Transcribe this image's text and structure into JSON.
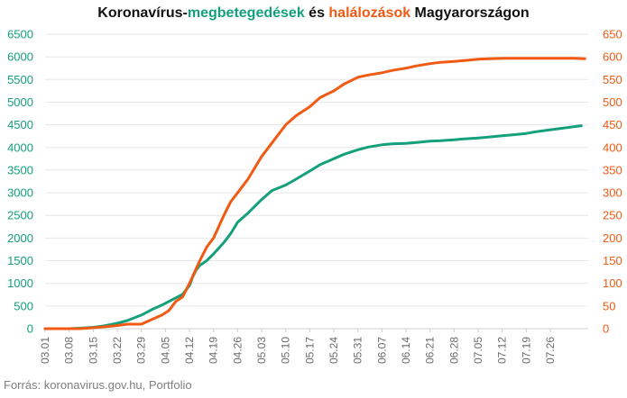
{
  "title": {
    "part1": "Koronavírus-",
    "part2": "megbetegedések",
    "part3": " és ",
    "part4": "halálozások",
    "part5": " Magyarországon"
  },
  "source": "Forrás: koronavirus.gov.hu, Portfolio",
  "colors": {
    "cases": "#14a07b",
    "deaths": "#f05a12",
    "grid": "#e6e6e6"
  },
  "chart_data": {
    "type": "line",
    "title": "Koronavírus-megbetegedések és halálozások Magyarországon",
    "xlabel": "",
    "ylabel": "",
    "grid": true,
    "legend": "none",
    "x_ticks": [
      "03.01",
      "03.08",
      "03.15",
      "03.22",
      "03.29",
      "04.05",
      "04.12",
      "04.19",
      "04.26",
      "05.03",
      "05.10",
      "05.17",
      "05.24",
      "05.31",
      "06.07",
      "06.14",
      "06.21",
      "06.28",
      "07.05",
      "07.12",
      "07.19",
      "07.26"
    ],
    "y_left": {
      "ylim": [
        0,
        6500
      ],
      "ticks": [
        0,
        500,
        1000,
        1500,
        2000,
        2500,
        3000,
        3500,
        4000,
        4500,
        5000,
        5500,
        6000,
        6500
      ]
    },
    "y_right": {
      "ylim": [
        0,
        650
      ],
      "ticks": [
        0,
        50,
        100,
        150,
        200,
        250,
        300,
        350,
        400,
        450,
        500,
        550,
        600,
        650
      ]
    },
    "x_range": [
      0,
      158
    ],
    "series": [
      {
        "axis": "left",
        "x": [
          0,
          7,
          10,
          14,
          17,
          21,
          24,
          28,
          31,
          34,
          36,
          38,
          40,
          42,
          43,
          44,
          45,
          47,
          49,
          52,
          54,
          56,
          59,
          63,
          66,
          70,
          73,
          77,
          80,
          84,
          87,
          91,
          94,
          98,
          101,
          105,
          108,
          112,
          115,
          119,
          122,
          126,
          129,
          133,
          136,
          140,
          143,
          147,
          150,
          154,
          156
        ],
        "values": [
          0,
          0,
          10,
          30,
          60,
          120,
          180,
          300,
          420,
          520,
          600,
          680,
          760,
          950,
          1150,
          1300,
          1400,
          1500,
          1650,
          1900,
          2100,
          2350,
          2550,
          2850,
          3050,
          3170,
          3300,
          3480,
          3620,
          3750,
          3850,
          3950,
          4010,
          4060,
          4080,
          4090,
          4110,
          4140,
          4150,
          4170,
          4190,
          4210,
          4230,
          4260,
          4280,
          4310,
          4350,
          4390,
          4420,
          4460,
          4480
        ]
      },
      {
        "axis": "right",
        "x": [
          0,
          10,
          14,
          17,
          21,
          24,
          28,
          31,
          34,
          36,
          38,
          40,
          42,
          45,
          47,
          49,
          52,
          54,
          56,
          59,
          63,
          66,
          70,
          73,
          77,
          80,
          84,
          87,
          91,
          94,
          98,
          101,
          105,
          108,
          112,
          115,
          119,
          122,
          126,
          129,
          133,
          136,
          140,
          143,
          147,
          150,
          154,
          157
        ],
        "values": [
          0,
          0,
          2,
          4,
          7,
          10,
          10,
          20,
          30,
          40,
          60,
          70,
          100,
          150,
          180,
          200,
          250,
          280,
          300,
          330,
          380,
          410,
          450,
          470,
          490,
          510,
          525,
          540,
          555,
          560,
          565,
          570,
          575,
          580,
          585,
          588,
          590,
          592,
          595,
          596,
          597,
          597,
          597,
          597,
          597,
          597,
          597,
          596
        ]
      }
    ]
  }
}
